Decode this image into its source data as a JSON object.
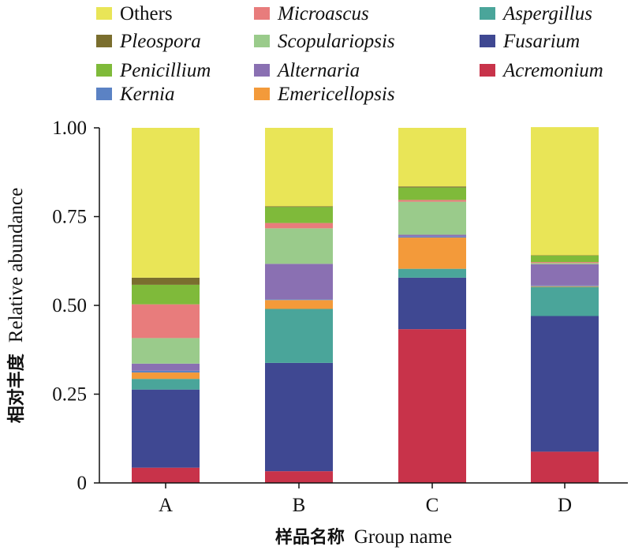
{
  "chart_data": {
    "type": "bar",
    "stacked": true,
    "categories": [
      "A",
      "B",
      "C",
      "D"
    ],
    "xlabel_cn": "样品名称",
    "xlabel": "Group name",
    "ylabel_cn": "相对丰度",
    "ylabel": "Relative abundance",
    "ylim": [
      0,
      1
    ],
    "yticks": [
      "0",
      "0.25",
      "0.50",
      "0.75",
      "1.00"
    ],
    "legend_position": "top",
    "series": [
      {
        "name": "Acremonium",
        "color": "#C8334A",
        "italic": true,
        "values": [
          0.043,
          0.033,
          0.433,
          0.088
        ]
      },
      {
        "name": "Fusarium",
        "color": "#3F4892",
        "italic": true,
        "values": [
          0.22,
          0.305,
          0.145,
          0.382
        ]
      },
      {
        "name": "Aspergillus",
        "color": "#4AA59A",
        "italic": true,
        "values": [
          0.03,
          0.152,
          0.025,
          0.082
        ]
      },
      {
        "name": "Emericellopsis",
        "color": "#F39A3A",
        "italic": true,
        "values": [
          0.018,
          0.025,
          0.088,
          0.002
        ]
      },
      {
        "name": "Kernia",
        "color": "#5B82C4",
        "italic": true,
        "values": [
          0.005,
          0.002,
          0.003,
          0.002
        ]
      },
      {
        "name": "Alternaria",
        "color": "#8A70B2",
        "italic": true,
        "values": [
          0.02,
          0.1,
          0.005,
          0.06
        ]
      },
      {
        "name": "Scopulariopsis",
        "color": "#9ACB8B",
        "italic": true,
        "values": [
          0.072,
          0.1,
          0.093,
          0.003
        ]
      },
      {
        "name": "Microascus",
        "color": "#E87C7C",
        "italic": true,
        "values": [
          0.095,
          0.015,
          0.005,
          0.003
        ]
      },
      {
        "name": "Penicillium",
        "color": "#7FBA3A",
        "italic": true,
        "values": [
          0.055,
          0.045,
          0.035,
          0.018
        ]
      },
      {
        "name": "Pleospora",
        "color": "#7A6E2E",
        "italic": true,
        "values": [
          0.02,
          0.002,
          0.003,
          0.001
        ]
      },
      {
        "name": "Others",
        "color": "#E9E557",
        "italic": false,
        "values": [
          0.422,
          0.221,
          0.165,
          0.361
        ]
      }
    ],
    "legend_order": [
      "Others",
      "Microascus",
      "Aspergillus",
      "Pleospora",
      "Scopulariopsis",
      "Fusarium",
      "Penicillium",
      "Alternaria",
      "Acremonium",
      "Kernia",
      "Emericellopsis"
    ]
  }
}
